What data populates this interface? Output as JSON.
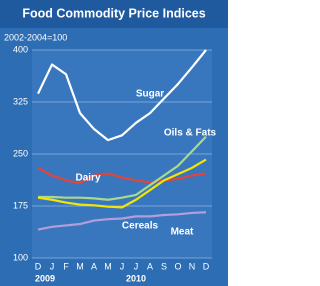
{
  "chart_data": {
    "type": "line",
    "title": "Food Commodity Price Indices",
    "subtitle": "2002-2004=100",
    "categories": [
      "D",
      "J",
      "F",
      "M",
      "A",
      "M",
      "J",
      "J",
      "A",
      "S",
      "O",
      "N",
      "D"
    ],
    "years": [
      "2009",
      "2010"
    ],
    "ylim": [
      100,
      400
    ],
    "yticks": [
      100,
      175,
      250,
      325,
      400
    ],
    "grid": true,
    "series": [
      {
        "name": "Sugar",
        "color": "#ffffff",
        "values": [
          337,
          379,
          365,
          309,
          286,
          270,
          277,
          295,
          309,
          330,
          351,
          375,
          400
        ]
      },
      {
        "name": "Dairy",
        "color": "#e2443a",
        "values": [
          230,
          219,
          212,
          208,
          219,
          222,
          216,
          212,
          209,
          212,
          214,
          219,
          222
        ]
      },
      {
        "name": "Oils & Fats",
        "color": "#a9d98c",
        "values": [
          188,
          188,
          187,
          187,
          186,
          184,
          187,
          191,
          205,
          219,
          233,
          254,
          275
        ]
      },
      {
        "name": "Cereals",
        "color": "#f3e600",
        "values": [
          187,
          184,
          180,
          177,
          176,
          174,
          173,
          184,
          198,
          212,
          221,
          230,
          242
        ]
      },
      {
        "name": "Meat",
        "color": "#b39ddb",
        "values": [
          141,
          145,
          147,
          149,
          154,
          156,
          157,
          160,
          160,
          162,
          163,
          165,
          166
        ]
      }
    ]
  }
}
